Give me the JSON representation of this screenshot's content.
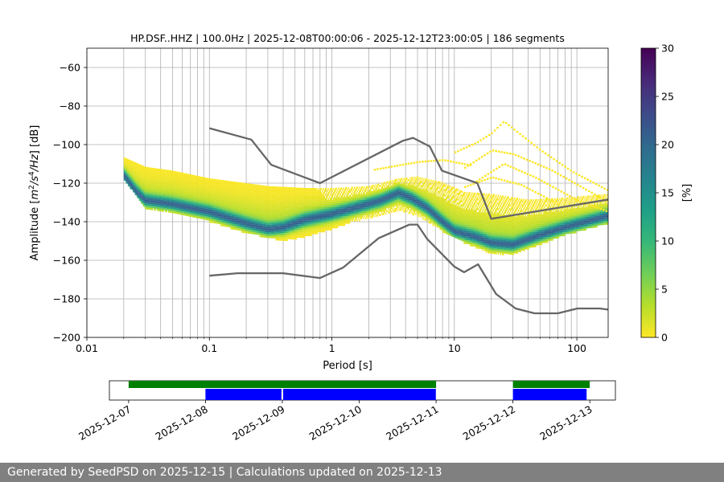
{
  "chart_data": {
    "type": "heatmap",
    "title": "HP.DSF..HHZ | 100.0Hz | 2025-12-08T00:00:06 - 2025-12-12T23:00:05 | 186 segments",
    "xlabel": "Period [s]",
    "ylabel_parts": [
      "Amplitude [",
      "m",
      "2",
      "/",
      "s",
      "4",
      "/",
      "Hz",
      "] [dB]"
    ],
    "xscale": "log",
    "xlim": [
      0.01,
      180
    ],
    "ylim": [
      -200,
      -50
    ],
    "grid": true,
    "x_ticks": [
      {
        "value": 0.01,
        "label": "0.01"
      },
      {
        "value": 0.1,
        "label": "0.1"
      },
      {
        "value": 1,
        "label": "1"
      },
      {
        "value": 10,
        "label": "10"
      },
      {
        "value": 100,
        "label": "100"
      }
    ],
    "y_ticks": [
      {
        "value": -60,
        "label": "−60"
      },
      {
        "value": -80,
        "label": "−80"
      },
      {
        "value": -100,
        "label": "−100"
      },
      {
        "value": -120,
        "label": "−120"
      },
      {
        "value": -140,
        "label": "−140"
      },
      {
        "value": -160,
        "label": "−160"
      },
      {
        "value": -180,
        "label": "−180"
      },
      {
        "value": -200,
        "label": "−200"
      }
    ],
    "colorbar": {
      "label": "[%]",
      "range": [
        0,
        30
      ],
      "ticks": [
        {
          "value": 0,
          "label": "0"
        },
        {
          "value": 5,
          "label": "5"
        },
        {
          "value": 10,
          "label": "10"
        },
        {
          "value": 15,
          "label": "15"
        },
        {
          "value": 20,
          "label": "20"
        },
        {
          "value": 25,
          "label": "25"
        },
        {
          "value": 30,
          "label": "30"
        }
      ],
      "colors": [
        "#fde725",
        "#b5de2b",
        "#6ece58",
        "#35b779",
        "#1f9e89",
        "#26828e",
        "#31688e",
        "#3e4989",
        "#482878",
        "#440154"
      ]
    },
    "noise_model_high": [
      [
        0.1,
        -91.5
      ],
      [
        0.22,
        -97.4
      ],
      [
        0.32,
        -110.5
      ],
      [
        0.8,
        -120
      ],
      [
        3.8,
        -98
      ],
      [
        4.6,
        -96.5
      ],
      [
        6.3,
        -101
      ],
      [
        7.9,
        -113.5
      ],
      [
        15.4,
        -120
      ],
      [
        20,
        -138.5
      ],
      [
        180,
        -128.5
      ]
    ],
    "noise_model_low": [
      [
        0.1,
        -168
      ],
      [
        0.17,
        -166.7
      ],
      [
        0.4,
        -166.7
      ],
      [
        0.8,
        -169.2
      ],
      [
        1.24,
        -163.7
      ],
      [
        2.4,
        -148.6
      ],
      [
        4.3,
        -141.5
      ],
      [
        5,
        -141.5
      ],
      [
        6,
        -149
      ],
      [
        10,
        -163.3
      ],
      [
        12,
        -166.2
      ],
      [
        15.6,
        -162.1
      ],
      [
        21.9,
        -177.5
      ],
      [
        31.6,
        -185
      ],
      [
        45,
        -187.5
      ],
      [
        70,
        -187.5
      ],
      [
        101,
        -185
      ],
      [
        154,
        -185
      ],
      [
        180,
        -185.6
      ]
    ],
    "psd_mode": [
      [
        0.02,
        -116
      ],
      [
        0.025,
        -124
      ],
      [
        0.03,
        -129
      ],
      [
        0.05,
        -131
      ],
      [
        0.1,
        -135
      ],
      [
        0.2,
        -141
      ],
      [
        0.3,
        -144
      ],
      [
        0.4,
        -143
      ],
      [
        0.6,
        -139
      ],
      [
        1,
        -136
      ],
      [
        1.5,
        -133
      ],
      [
        2.5,
        -129
      ],
      [
        3.5,
        -125
      ],
      [
        4.5,
        -128
      ],
      [
        6,
        -133
      ],
      [
        8,
        -140
      ],
      [
        10,
        -145
      ],
      [
        15,
        -148
      ],
      [
        20,
        -151
      ],
      [
        30,
        -152
      ],
      [
        50,
        -147
      ],
      [
        80,
        -143
      ],
      [
        120,
        -140
      ],
      [
        180,
        -137
      ]
    ],
    "psd_upper": [
      [
        0.02,
        -107
      ],
      [
        0.03,
        -112
      ],
      [
        0.05,
        -114
      ],
      [
        0.1,
        -118
      ],
      [
        0.3,
        -122
      ],
      [
        0.6,
        -123
      ],
      [
        1,
        -123
      ],
      [
        2,
        -122
      ],
      [
        3.5,
        -118
      ],
      [
        5,
        -117
      ],
      [
        8,
        -120
      ],
      [
        12,
        -125
      ],
      [
        20,
        -126
      ],
      [
        40,
        -129
      ],
      [
        80,
        -128
      ],
      [
        180,
        -126
      ]
    ],
    "psd_lower": [
      [
        0.02,
        -118
      ],
      [
        0.03,
        -133
      ],
      [
        0.05,
        -135
      ],
      [
        0.1,
        -140
      ],
      [
        0.2,
        -146
      ],
      [
        0.4,
        -150
      ],
      [
        0.6,
        -148
      ],
      [
        1,
        -144
      ],
      [
        1.5,
        -140
      ],
      [
        2.5,
        -137
      ],
      [
        3.5,
        -134
      ],
      [
        5,
        -137
      ],
      [
        8,
        -145
      ],
      [
        12,
        -151
      ],
      [
        20,
        -157
      ],
      [
        30,
        -157
      ],
      [
        50,
        -152
      ],
      [
        80,
        -147
      ],
      [
        120,
        -144
      ],
      [
        180,
        -141
      ]
    ],
    "sporadic_lines": [
      [
        [
          2.2,
          -113
        ],
        [
          5,
          -109
        ],
        [
          8,
          -108
        ],
        [
          14,
          -111
        ]
      ],
      [
        [
          10,
          -104
        ],
        [
          15,
          -99
        ],
        [
          20,
          -94
        ],
        [
          25,
          -88
        ],
        [
          30,
          -92
        ],
        [
          50,
          -103
        ],
        [
          90,
          -114
        ],
        [
          180,
          -124
        ]
      ],
      [
        [
          12,
          -112
        ],
        [
          20,
          -103
        ],
        [
          30,
          -105
        ],
        [
          60,
          -113
        ],
        [
          180,
          -130
        ]
      ],
      [
        [
          15,
          -119
        ],
        [
          25,
          -110
        ],
        [
          45,
          -117
        ],
        [
          100,
          -129
        ],
        [
          180,
          -135
        ]
      ],
      [
        [
          12,
          -122
        ],
        [
          20,
          -117
        ],
        [
          35,
          -121
        ],
        [
          70,
          -131
        ]
      ]
    ],
    "timeline": {
      "x_range": [
        "2025-12-06T18:00",
        "2025-12-13T08:00"
      ],
      "tick_dates": [
        "2025-12-07",
        "2025-12-08",
        "2025-12-09",
        "2025-12-10",
        "2025-12-11",
        "2025-12-12",
        "2025-12-13"
      ],
      "availability": [
        [
          "2025-12-07T00:00",
          "2025-12-11T00:00"
        ],
        [
          "2025-12-12T00:00",
          "2025-12-13T00:00"
        ]
      ],
      "segments": [
        [
          "2025-12-08T00:00",
          "2025-12-08T23:45"
        ],
        [
          "2025-12-09T00:15",
          "2025-12-10T23:55"
        ],
        [
          "2025-12-12T00:00",
          "2025-12-12T23:00"
        ]
      ],
      "availability_color": "#008000",
      "segment_color": "#0000ff"
    }
  },
  "footer": {
    "text": "Generated by SeedPSD on 2025-12-15 | Calculations updated on 2025-12-13",
    "background": "#808080"
  }
}
